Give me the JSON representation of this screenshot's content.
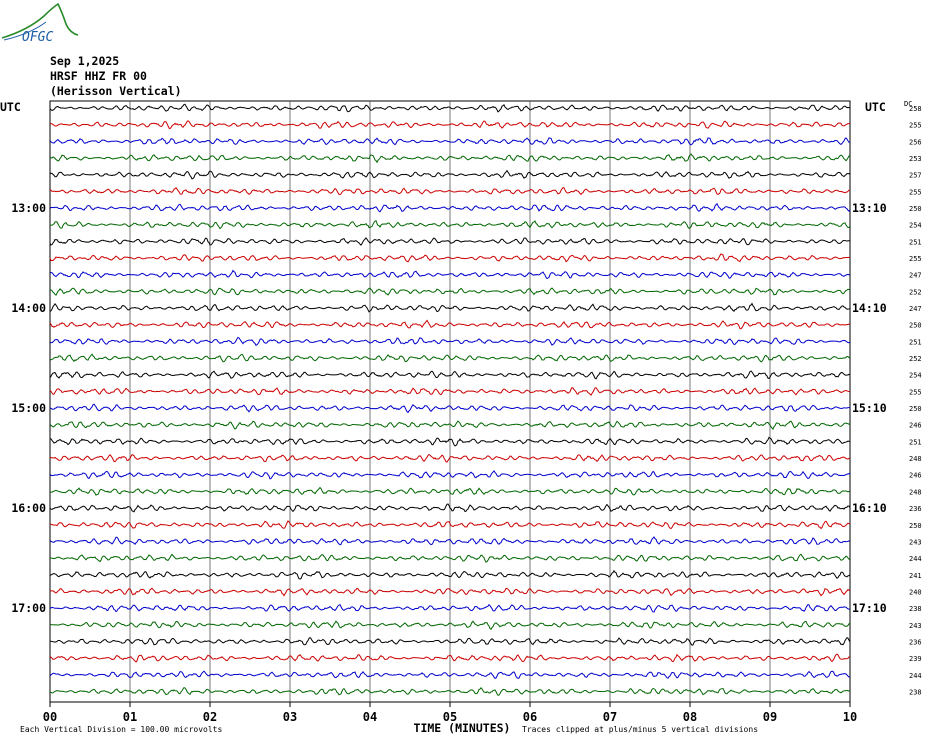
{
  "logo": {
    "text": "OFGC"
  },
  "header": {
    "date": "Sep 1,2025",
    "station": "HRSF HHZ FR 00",
    "location": "(Herisson Vertical)"
  },
  "chart_data": {
    "type": "line",
    "left_axis_label": "UTC",
    "right_axis_label": "UTC",
    "dc_label": "DC",
    "xlabel": "TIME (MINUTES)",
    "x_ticks": [
      "00",
      "01",
      "02",
      "03",
      "04",
      "05",
      "06",
      "07",
      "08",
      "09",
      "10"
    ],
    "xlim": [
      0,
      10
    ],
    "rows_per_hour": 6,
    "trace_colors": [
      "#000000",
      "#cc0000",
      "#0000cc",
      "#006600"
    ],
    "left_hour_labels": [
      "13:00",
      "14:00",
      "15:00",
      "16:00",
      "17:00"
    ],
    "right_hour_labels": [
      "13:10",
      "14:10",
      "15:10",
      "16:10",
      "17:10"
    ],
    "hour_label_rows": [
      6,
      12,
      18,
      24,
      30
    ],
    "dc_values": [
      "258",
      "255",
      "256",
      "253",
      "257",
      "255",
      "250",
      "254",
      "251",
      "255",
      "247",
      "252",
      "247",
      "250",
      "251",
      "252",
      "254",
      "255",
      "250",
      "246",
      "251",
      "248",
      "246",
      "248",
      "236",
      "250",
      "243",
      "244",
      "241",
      "240",
      "238",
      "243",
      "236",
      "239",
      "244",
      "238"
    ],
    "footer_left": "Each Vertical Division =  100.00 microvolts",
    "footer_right": "Traces clipped at plus/minus 5 vertical divisions"
  }
}
